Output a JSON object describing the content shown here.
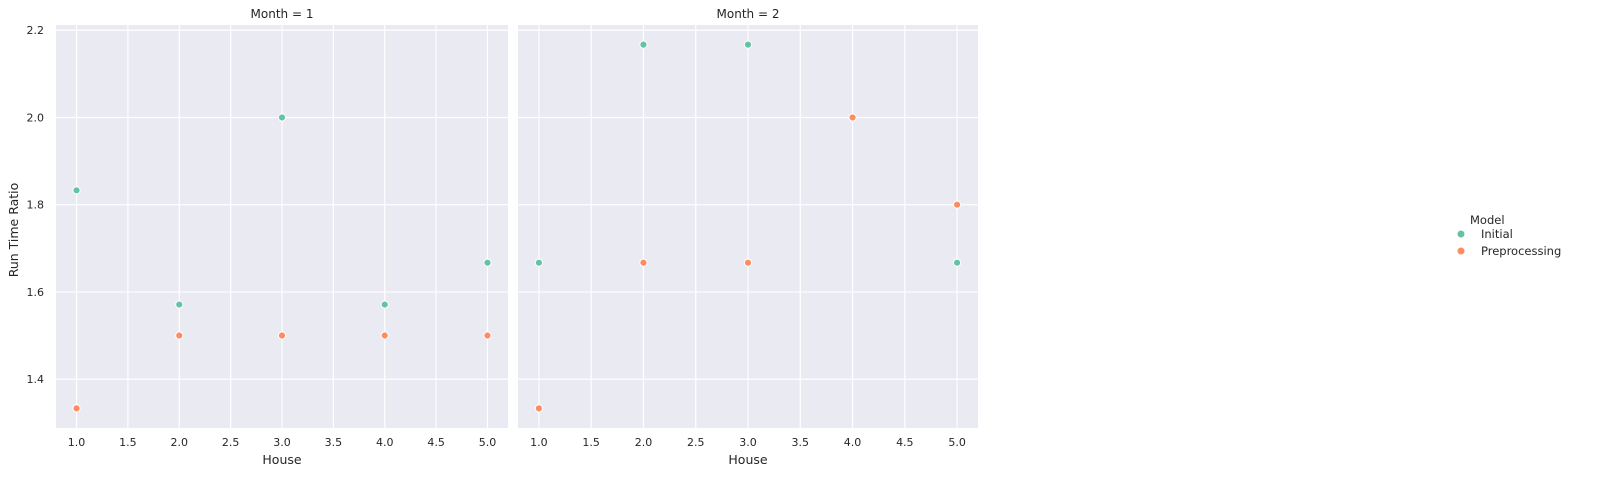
{
  "chart_data": {
    "type": "scatter",
    "xlabel": "House",
    "ylabel": "Run Time Ratio",
    "xlim": [
      0.8,
      5.2
    ],
    "ylim": [
      1.288,
      2.212
    ],
    "xticks": [
      1.0,
      1.5,
      2.0,
      2.5,
      3.0,
      3.5,
      4.0,
      4.5,
      5.0
    ],
    "xtick_labels": [
      "1.0",
      "1.5",
      "2.0",
      "2.5",
      "3.0",
      "3.5",
      "4.0",
      "4.5",
      "5.0"
    ],
    "yticks": [
      1.4,
      1.6,
      1.8,
      2.0,
      2.2
    ],
    "ytick_labels": [
      "1.4",
      "1.6",
      "1.8",
      "2.0",
      "2.2"
    ],
    "grid": true,
    "legend": {
      "title": "Model",
      "placement": "right",
      "entries": [
        {
          "name": "Initial",
          "color": "#66c2a5"
        },
        {
          "name": "Preprocessing",
          "color": "#fc8d62"
        }
      ]
    },
    "panels": [
      {
        "title": "Month = 1",
        "series": [
          {
            "name": "Initial",
            "x": [
              1,
              2,
              3,
              4,
              5
            ],
            "y": [
              1.833,
              1.571,
              2.0,
              1.571,
              1.667
            ]
          },
          {
            "name": "Preprocessing",
            "x": [
              1,
              2,
              3,
              4,
              5
            ],
            "y": [
              1.333,
              1.5,
              1.5,
              1.5,
              1.5
            ]
          }
        ]
      },
      {
        "title": "Month = 2",
        "series": [
          {
            "name": "Initial",
            "x": [
              1,
              2,
              3,
              5
            ],
            "y": [
              1.667,
              2.167,
              2.167,
              1.667
            ]
          },
          {
            "name": "Preprocessing",
            "x": [
              1,
              2,
              3,
              4,
              5
            ],
            "y": [
              1.333,
              1.667,
              1.667,
              2.0,
              1.8
            ]
          }
        ]
      }
    ]
  }
}
